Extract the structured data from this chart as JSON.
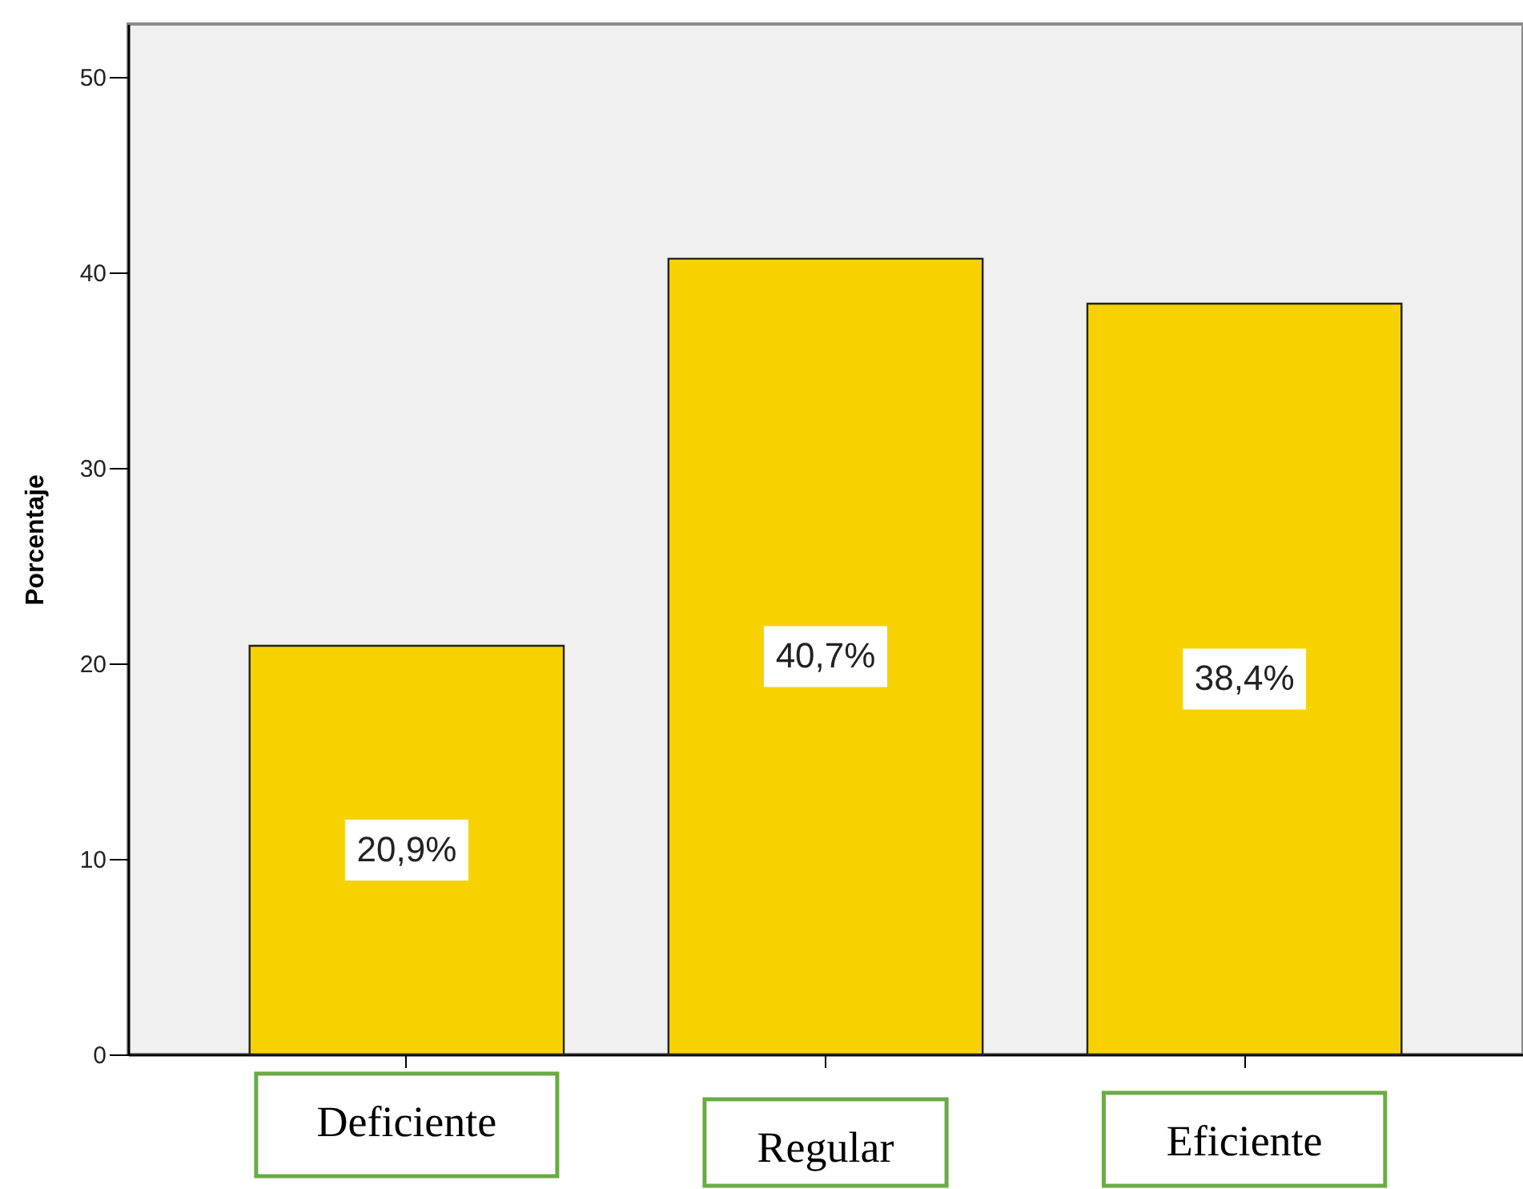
{
  "chart_data": {
    "type": "bar",
    "ylabel": "Porcentaje",
    "categories": [
      "Deficiente",
      "Regular",
      "Eficiente"
    ],
    "values": [
      20.9,
      40.7,
      38.4
    ],
    "color": "#f8d200",
    "value_labels": [
      "20,9%",
      "40,7%",
      "38,4%"
    ],
    "ylim": [
      0,
      52.7
    ],
    "yticks": [
      0,
      10,
      20,
      30,
      40,
      50
    ]
  }
}
